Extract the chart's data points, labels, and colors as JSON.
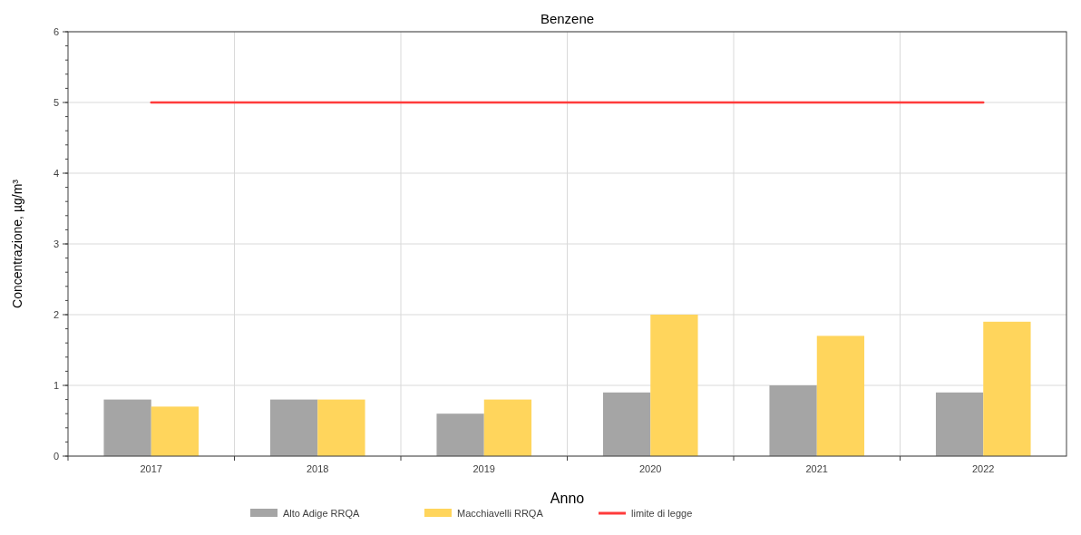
{
  "chart_data": {
    "type": "bar",
    "title": "Benzene",
    "xlabel": "Anno",
    "ylabel": "Concentrazione, µg/m³",
    "categories": [
      "2017",
      "2018",
      "2019",
      "2020",
      "2021",
      "2022"
    ],
    "series": [
      {
        "name": "Alto Adige RRQA",
        "color": "#a5a5a5",
        "values": [
          0.8,
          0.8,
          0.6,
          0.9,
          1.0,
          0.9
        ]
      },
      {
        "name": "Macchiavelli RRQA",
        "color": "#ffd55c",
        "values": [
          0.7,
          0.8,
          0.8,
          2.0,
          1.7,
          1.9
        ]
      },
      {
        "name": "limite di legge",
        "type": "line",
        "color": "#ff3b3b",
        "values": [
          5,
          5,
          5,
          5,
          5,
          5
        ]
      }
    ],
    "ylim": [
      0,
      6
    ],
    "yticks": [
      0,
      1,
      2,
      3,
      4,
      5,
      6
    ],
    "grid": true,
    "legend": "bottom"
  }
}
